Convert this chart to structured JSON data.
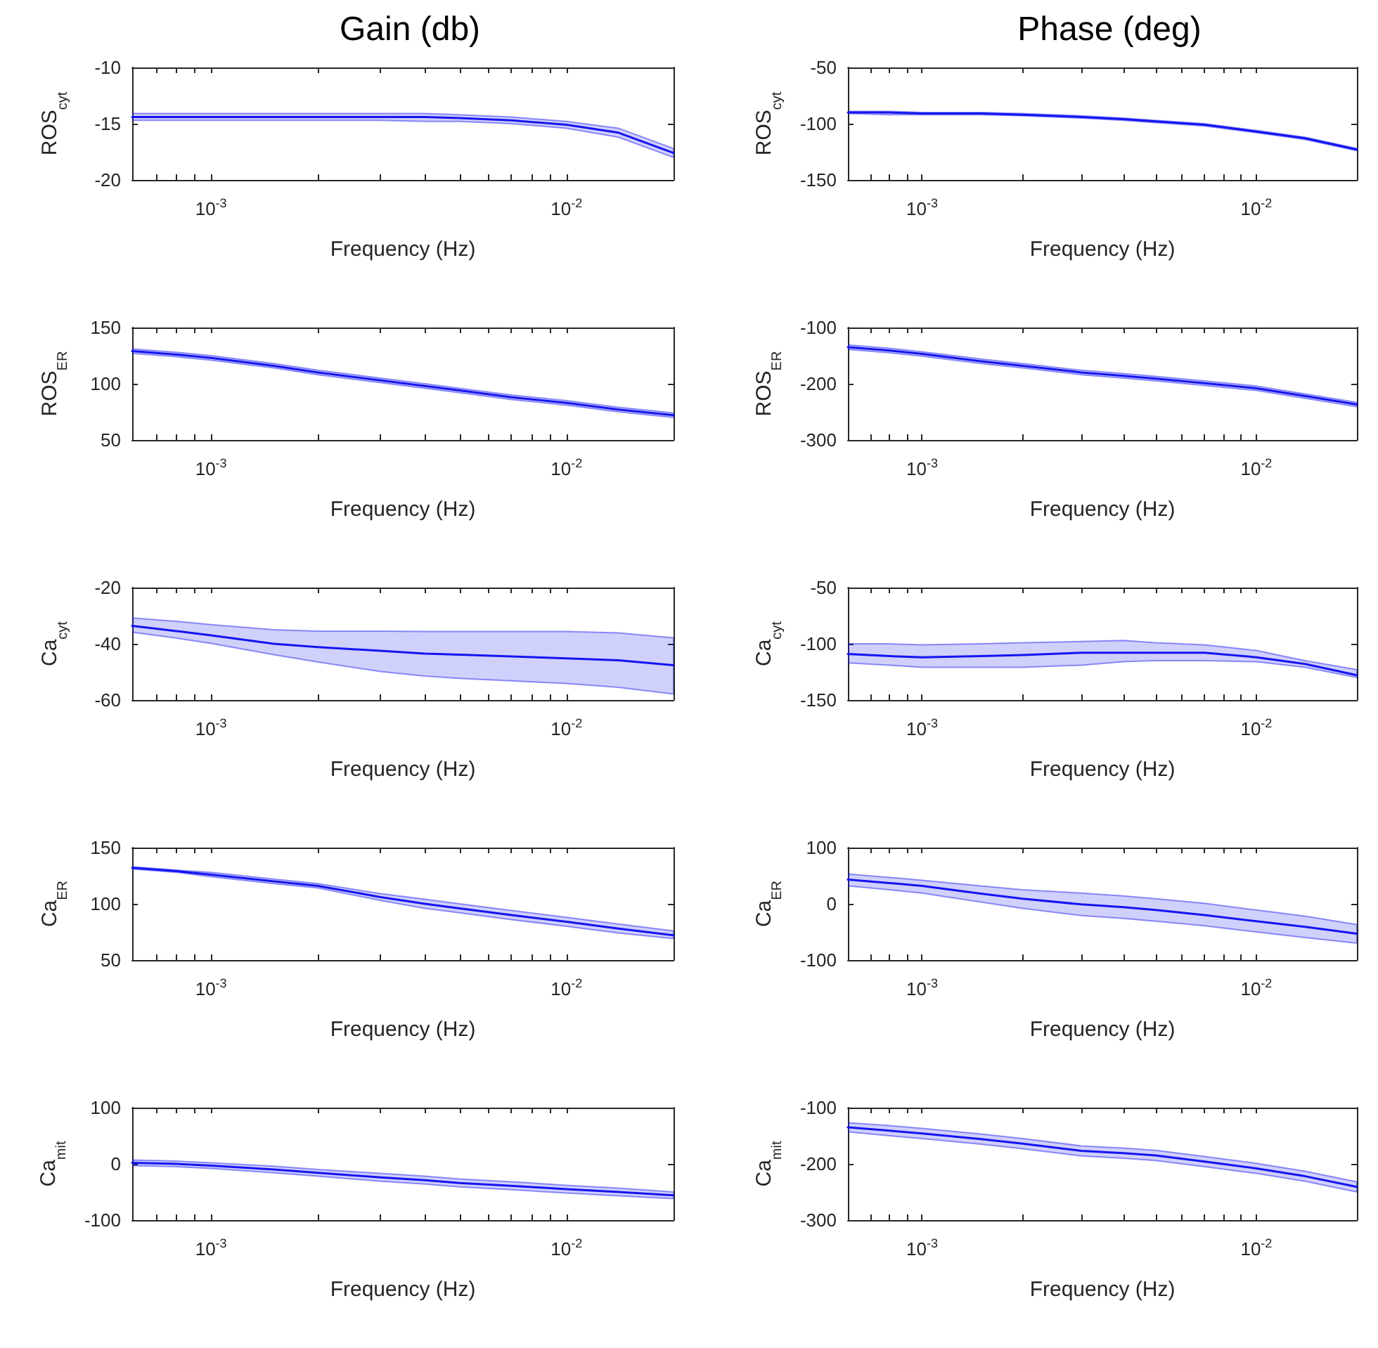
{
  "chart_data": [
    {
      "type": "line",
      "title": "Gain (db)",
      "xlabel": "Frequency (Hz)",
      "ylabel": "ROS$_{cyt}$",
      "log": "x",
      "grid": false,
      "marker": "none",
      "xlim": [
        0.0006,
        0.02
      ],
      "xticks": [
        {
          "value": 0.0006,
          "label": null
        },
        {
          "value": 0.0007,
          "label": null
        },
        {
          "value": 0.0008,
          "label": null
        },
        {
          "value": 0.0009,
          "label": null
        },
        {
          "value": 0.001,
          "label": "10$^{-3}$"
        },
        {
          "value": 0.002,
          "label": null
        },
        {
          "value": 0.003,
          "label": null
        },
        {
          "value": 0.004,
          "label": null
        },
        {
          "value": 0.005,
          "label": null
        },
        {
          "value": 0.006,
          "label": null
        },
        {
          "value": 0.007,
          "label": null
        },
        {
          "value": 0.008,
          "label": null
        },
        {
          "value": 0.009,
          "label": null
        },
        {
          "value": 0.01,
          "label": "10$^{-2}$"
        },
        {
          "value": 0.02,
          "label": null
        }
      ],
      "ylim": [
        -20,
        -10
      ],
      "yticks": [
        -20,
        -15,
        -10
      ],
      "x": [
        0.0006,
        0.0008,
        0.001,
        0.0015,
        0.002,
        0.003,
        0.004,
        0.005,
        0.007,
        0.01,
        0.014,
        0.02
      ],
      "series": [
        {
          "color": "#1414f0",
          "values": [
            -14.4,
            -14.4,
            -14.4,
            -14.4,
            -14.4,
            -14.4,
            -14.4,
            -14.5,
            -14.7,
            -15.1,
            -15.8,
            -17.6
          ],
          "upper": [
            -14.1,
            -14.1,
            -14.1,
            -14.1,
            -14.1,
            -14.1,
            -14.1,
            -14.2,
            -14.4,
            -14.8,
            -15.4,
            -17.2
          ],
          "lower": [
            -14.7,
            -14.7,
            -14.7,
            -14.7,
            -14.7,
            -14.7,
            -14.8,
            -14.8,
            -15.0,
            -15.4,
            -16.2,
            -18.0
          ]
        }
      ]
    },
    {
      "type": "line",
      "title": "Phase (deg)",
      "xlabel": "Frequency (Hz)",
      "ylabel": "ROS$_{cyt}$",
      "log": "x",
      "grid": false,
      "marker": "none",
      "xlim": [
        0.0006,
        0.02
      ],
      "xticks": [
        {
          "value": 0.0006,
          "label": null
        },
        {
          "value": 0.0007,
          "label": null
        },
        {
          "value": 0.0008,
          "label": null
        },
        {
          "value": 0.0009,
          "label": null
        },
        {
          "value": 0.001,
          "label": "10$^{-3}$"
        },
        {
          "value": 0.002,
          "label": null
        },
        {
          "value": 0.003,
          "label": null
        },
        {
          "value": 0.004,
          "label": null
        },
        {
          "value": 0.005,
          "label": null
        },
        {
          "value": 0.006,
          "label": null
        },
        {
          "value": 0.007,
          "label": null
        },
        {
          "value": 0.008,
          "label": null
        },
        {
          "value": 0.009,
          "label": null
        },
        {
          "value": 0.01,
          "label": "10$^{-2}$"
        },
        {
          "value": 0.02,
          "label": null
        }
      ],
      "ylim": [
        -150,
        -50
      ],
      "yticks": [
        -150,
        -100,
        -50
      ],
      "x": [
        0.0006,
        0.0008,
        0.001,
        0.0015,
        0.002,
        0.003,
        0.004,
        0.005,
        0.007,
        0.01,
        0.014,
        0.02
      ],
      "series": [
        {
          "color": "#1414f0",
          "values": [
            -90,
            -90,
            -91,
            -91,
            -92,
            -94,
            -96,
            -98,
            -101,
            -107,
            -113,
            -123
          ],
          "upper": [
            -89,
            -89,
            -90,
            -90,
            -91,
            -93,
            -95,
            -97,
            -100,
            -106,
            -112,
            -122
          ],
          "lower": [
            -91,
            -92,
            -92,
            -92,
            -93,
            -95,
            -97,
            -99,
            -102,
            -108,
            -114,
            -124
          ]
        }
      ]
    },
    {
      "type": "line",
      "xlabel": "Frequency (Hz)",
      "ylabel": "ROS$_{ER}$",
      "log": "x",
      "grid": false,
      "marker": "none",
      "xlim": [
        0.0006,
        0.02
      ],
      "xticks": [
        {
          "value": 0.0006,
          "label": null
        },
        {
          "value": 0.0007,
          "label": null
        },
        {
          "value": 0.0008,
          "label": null
        },
        {
          "value": 0.0009,
          "label": null
        },
        {
          "value": 0.001,
          "label": "10$^{-3}$"
        },
        {
          "value": 0.002,
          "label": null
        },
        {
          "value": 0.003,
          "label": null
        },
        {
          "value": 0.004,
          "label": null
        },
        {
          "value": 0.005,
          "label": null
        },
        {
          "value": 0.006,
          "label": null
        },
        {
          "value": 0.007,
          "label": null
        },
        {
          "value": 0.008,
          "label": null
        },
        {
          "value": 0.009,
          "label": null
        },
        {
          "value": 0.01,
          "label": "10$^{-2}$"
        },
        {
          "value": 0.02,
          "label": null
        }
      ],
      "ylim": [
        50,
        150
      ],
      "yticks": [
        50,
        100,
        150
      ],
      "x": [
        0.0006,
        0.0008,
        0.001,
        0.0015,
        0.002,
        0.003,
        0.004,
        0.005,
        0.007,
        0.01,
        0.014,
        0.02
      ],
      "series": [
        {
          "color": "#1414f0",
          "values": [
            129,
            126,
            123,
            116,
            110,
            103,
            98,
            94,
            88,
            83,
            77,
            72
          ],
          "upper": [
            131,
            128,
            125,
            118,
            112,
            105,
            100,
            96,
            90,
            85,
            79,
            74
          ],
          "lower": [
            127,
            124,
            121,
            114,
            108,
            101,
            96,
            92,
            86,
            81,
            75,
            70
          ]
        }
      ]
    },
    {
      "type": "line",
      "xlabel": "Frequency (Hz)",
      "ylabel": "ROS$_{ER}$",
      "log": "x",
      "grid": false,
      "marker": "none",
      "xlim": [
        0.0006,
        0.02
      ],
      "xticks": [
        {
          "value": 0.0006,
          "label": null
        },
        {
          "value": 0.0007,
          "label": null
        },
        {
          "value": 0.0008,
          "label": null
        },
        {
          "value": 0.0009,
          "label": null
        },
        {
          "value": 0.001,
          "label": "10$^{-3}$"
        },
        {
          "value": 0.002,
          "label": null
        },
        {
          "value": 0.003,
          "label": null
        },
        {
          "value": 0.004,
          "label": null
        },
        {
          "value": 0.005,
          "label": null
        },
        {
          "value": 0.006,
          "label": null
        },
        {
          "value": 0.007,
          "label": null
        },
        {
          "value": 0.008,
          "label": null
        },
        {
          "value": 0.009,
          "label": null
        },
        {
          "value": 0.01,
          "label": "10$^{-2}$"
        },
        {
          "value": 0.02,
          "label": null
        }
      ],
      "ylim": [
        -300,
        -100
      ],
      "yticks": [
        -300,
        -200,
        -100
      ],
      "x": [
        0.0006,
        0.0008,
        0.001,
        0.0015,
        0.002,
        0.003,
        0.004,
        0.005,
        0.007,
        0.01,
        0.014,
        0.02
      ],
      "series": [
        {
          "color": "#1414f0",
          "values": [
            -135,
            -141,
            -147,
            -160,
            -168,
            -180,
            -186,
            -191,
            -199,
            -208,
            -222,
            -237
          ],
          "upper": [
            -131,
            -137,
            -143,
            -156,
            -164,
            -176,
            -182,
            -187,
            -195,
            -204,
            -218,
            -233
          ],
          "lower": [
            -139,
            -145,
            -151,
            -164,
            -172,
            -184,
            -190,
            -195,
            -203,
            -212,
            -226,
            -241
          ]
        }
      ]
    },
    {
      "type": "line",
      "xlabel": "Frequency (Hz)",
      "ylabel": "Ca$_{cyt}$",
      "log": "x",
      "grid": false,
      "marker": "none",
      "xlim": [
        0.0006,
        0.02
      ],
      "xticks": [
        {
          "value": 0.0006,
          "label": null
        },
        {
          "value": 0.0007,
          "label": null
        },
        {
          "value": 0.0008,
          "label": null
        },
        {
          "value": 0.0009,
          "label": null
        },
        {
          "value": 0.001,
          "label": "10$^{-3}$"
        },
        {
          "value": 0.002,
          "label": null
        },
        {
          "value": 0.003,
          "label": null
        },
        {
          "value": 0.004,
          "label": null
        },
        {
          "value": 0.005,
          "label": null
        },
        {
          "value": 0.006,
          "label": null
        },
        {
          "value": 0.007,
          "label": null
        },
        {
          "value": 0.008,
          "label": null
        },
        {
          "value": 0.009,
          "label": null
        },
        {
          "value": 0.01,
          "label": "10$^{-2}$"
        },
        {
          "value": 0.02,
          "label": null
        }
      ],
      "ylim": [
        -60,
        -20
      ],
      "yticks": [
        -60,
        -40,
        -20
      ],
      "x": [
        0.0006,
        0.0008,
        0.001,
        0.0015,
        0.002,
        0.003,
        0.004,
        0.005,
        0.007,
        0.01,
        0.014,
        0.02
      ],
      "series": [
        {
          "color": "#1414f0",
          "values": [
            -33.6,
            -35.5,
            -37,
            -40,
            -41.2,
            -42.5,
            -43.5,
            -43.9,
            -44.5,
            -45.2,
            -45.9,
            -47.6
          ],
          "upper": [
            -30.8,
            -32,
            -33.2,
            -35,
            -35.5,
            -35.5,
            -35.6,
            -35.6,
            -35.6,
            -35.6,
            -36.1,
            -37.9
          ],
          "lower": [
            -35.9,
            -38,
            -39.9,
            -43.9,
            -46.5,
            -49.9,
            -51.5,
            -52.3,
            -53.2,
            -54.1,
            -55.5,
            -57.9
          ]
        }
      ]
    },
    {
      "type": "line",
      "xlabel": "Frequency (Hz)",
      "ylabel": "Ca$_{cyt}$",
      "log": "x",
      "grid": false,
      "marker": "none",
      "xlim": [
        0.0006,
        0.02
      ],
      "xticks": [
        {
          "value": 0.0006,
          "label": null
        },
        {
          "value": 0.0007,
          "label": null
        },
        {
          "value": 0.0008,
          "label": null
        },
        {
          "value": 0.0009,
          "label": null
        },
        {
          "value": 0.001,
          "label": "10$^{-3}$"
        },
        {
          "value": 0.002,
          "label": null
        },
        {
          "value": 0.003,
          "label": null
        },
        {
          "value": 0.004,
          "label": null
        },
        {
          "value": 0.005,
          "label": null
        },
        {
          "value": 0.006,
          "label": null
        },
        {
          "value": 0.007,
          "label": null
        },
        {
          "value": 0.008,
          "label": null
        },
        {
          "value": 0.009,
          "label": null
        },
        {
          "value": 0.01,
          "label": "10$^{-2}$"
        },
        {
          "value": 0.02,
          "label": null
        }
      ],
      "ylim": [
        -150,
        -50
      ],
      "yticks": [
        -150,
        -100,
        -50
      ],
      "x": [
        0.0006,
        0.0008,
        0.001,
        0.0015,
        0.002,
        0.003,
        0.004,
        0.005,
        0.007,
        0.01,
        0.014,
        0.02
      ],
      "series": [
        {
          "color": "#1414f0",
          "values": [
            -109,
            -111,
            -112,
            -111,
            -110,
            -108,
            -108,
            -108,
            -108,
            -112,
            -118,
            -128
          ],
          "upper": [
            -100,
            -100,
            -101,
            -100,
            -99,
            -98,
            -97,
            -99,
            -101,
            -106,
            -115,
            -123
          ],
          "lower": [
            -117,
            -119,
            -121,
            -121,
            -121,
            -119,
            -116,
            -115,
            -115,
            -116,
            -121,
            -130
          ]
        }
      ]
    },
    {
      "type": "line",
      "xlabel": "Frequency (Hz)",
      "ylabel": "Ca$_{ER}$",
      "log": "x",
      "grid": false,
      "marker": "none",
      "xlim": [
        0.0006,
        0.02
      ],
      "xticks": [
        {
          "value": 0.0006,
          "label": null
        },
        {
          "value": 0.0007,
          "label": null
        },
        {
          "value": 0.0008,
          "label": null
        },
        {
          "value": 0.0009,
          "label": null
        },
        {
          "value": 0.001,
          "label": "10$^{-3}$"
        },
        {
          "value": 0.002,
          "label": null
        },
        {
          "value": 0.003,
          "label": null
        },
        {
          "value": 0.004,
          "label": null
        },
        {
          "value": 0.005,
          "label": null
        },
        {
          "value": 0.006,
          "label": null
        },
        {
          "value": 0.007,
          "label": null
        },
        {
          "value": 0.008,
          "label": null
        },
        {
          "value": 0.009,
          "label": null
        },
        {
          "value": 0.01,
          "label": "10$^{-2}$"
        },
        {
          "value": 0.02,
          "label": null
        }
      ],
      "ylim": [
        50,
        150
      ],
      "yticks": [
        50,
        100,
        150
      ],
      "x": [
        0.0006,
        0.0008,
        0.001,
        0.0015,
        0.002,
        0.003,
        0.004,
        0.005,
        0.007,
        0.01,
        0.014,
        0.02
      ],
      "series": [
        {
          "color": "#1414f0",
          "values": [
            132,
            129,
            126,
            120,
            116,
            106,
            100,
            96,
            90,
            84,
            78,
            72
          ],
          "upper": [
            133,
            130,
            128,
            122,
            118,
            109,
            104,
            100,
            94,
            88,
            82,
            76
          ],
          "lower": [
            131,
            128,
            124,
            118,
            114,
            103,
            96,
            92,
            86,
            80,
            74,
            69
          ]
        }
      ]
    },
    {
      "type": "line",
      "xlabel": "Frequency (Hz)",
      "ylabel": "Ca$_{ER}$",
      "log": "x",
      "grid": false,
      "marker": "none",
      "xlim": [
        0.0006,
        0.02
      ],
      "xticks": [
        {
          "value": 0.0006,
          "label": null
        },
        {
          "value": 0.0007,
          "label": null
        },
        {
          "value": 0.0008,
          "label": null
        },
        {
          "value": 0.0009,
          "label": null
        },
        {
          "value": 0.001,
          "label": "10$^{-3}$"
        },
        {
          "value": 0.002,
          "label": null
        },
        {
          "value": 0.003,
          "label": null
        },
        {
          "value": 0.004,
          "label": null
        },
        {
          "value": 0.005,
          "label": null
        },
        {
          "value": 0.006,
          "label": null
        },
        {
          "value": 0.007,
          "label": null
        },
        {
          "value": 0.008,
          "label": null
        },
        {
          "value": 0.009,
          "label": null
        },
        {
          "value": 0.01,
          "label": "10$^{-2}$"
        },
        {
          "value": 0.02,
          "label": null
        }
      ],
      "ylim": [
        -100,
        100
      ],
      "yticks": [
        -100,
        0,
        100
      ],
      "x": [
        0.0006,
        0.0008,
        0.001,
        0.0015,
        0.002,
        0.003,
        0.004,
        0.005,
        0.007,
        0.01,
        0.014,
        0.02
      ],
      "series": [
        {
          "color": "#1414f0",
          "values": [
            43,
            37,
            32,
            18,
            9,
            -1,
            -6,
            -11,
            -20,
            -31,
            -41,
            -53
          ],
          "upper": [
            53,
            47,
            42,
            32,
            25,
            19,
            14,
            9,
            1,
            -11,
            -22,
            -37
          ],
          "lower": [
            32,
            25,
            19,
            3,
            -8,
            -21,
            -26,
            -31,
            -39,
            -50,
            -60,
            -70
          ]
        }
      ]
    },
    {
      "type": "line",
      "xlabel": "Frequency (Hz)",
      "ylabel": "Ca$_{mit}$",
      "log": "x",
      "grid": false,
      "marker": "none",
      "xlim": [
        0.0006,
        0.02
      ],
      "xticks": [
        {
          "value": 0.0006,
          "label": null
        },
        {
          "value": 0.0007,
          "label": null
        },
        {
          "value": 0.0008,
          "label": null
        },
        {
          "value": 0.0009,
          "label": null
        },
        {
          "value": 0.001,
          "label": "10$^{-3}$"
        },
        {
          "value": 0.002,
          "label": null
        },
        {
          "value": 0.003,
          "label": null
        },
        {
          "value": 0.004,
          "label": null
        },
        {
          "value": 0.005,
          "label": null
        },
        {
          "value": 0.006,
          "label": null
        },
        {
          "value": 0.007,
          "label": null
        },
        {
          "value": 0.008,
          "label": null
        },
        {
          "value": 0.009,
          "label": null
        },
        {
          "value": 0.01,
          "label": "10$^{-2}$"
        },
        {
          "value": 0.02,
          "label": null
        }
      ],
      "ylim": [
        -100,
        100
      ],
      "yticks": [
        -100,
        0,
        100
      ],
      "x": [
        0.0006,
        0.0008,
        0.001,
        0.0015,
        0.002,
        0.003,
        0.004,
        0.005,
        0.007,
        0.01,
        0.014,
        0.02
      ],
      "series": [
        {
          "color": "#1414f0",
          "values": [
            2,
            0,
            -3,
            -10,
            -16,
            -24,
            -29,
            -34,
            -39,
            -45,
            -50,
            -56
          ],
          "upper": [
            7,
            5,
            2,
            -4,
            -10,
            -17,
            -22,
            -27,
            -32,
            -38,
            -43,
            -50
          ],
          "lower": [
            -3,
            -5,
            -8,
            -16,
            -22,
            -31,
            -36,
            -41,
            -46,
            -52,
            -57,
            -62
          ]
        }
      ]
    },
    {
      "type": "line",
      "xlabel": "Frequency (Hz)",
      "ylabel": "Ca$_{mit}$",
      "log": "x",
      "grid": false,
      "marker": "none",
      "xlim": [
        0.0006,
        0.02
      ],
      "xticks": [
        {
          "value": 0.0006,
          "label": null
        },
        {
          "value": 0.0007,
          "label": null
        },
        {
          "value": 0.0008,
          "label": null
        },
        {
          "value": 0.0009,
          "label": null
        },
        {
          "value": 0.001,
          "label": "10$^{-3}$"
        },
        {
          "value": 0.002,
          "label": null
        },
        {
          "value": 0.003,
          "label": null
        },
        {
          "value": 0.004,
          "label": null
        },
        {
          "value": 0.005,
          "label": null
        },
        {
          "value": 0.006,
          "label": null
        },
        {
          "value": 0.007,
          "label": null
        },
        {
          "value": 0.008,
          "label": null
        },
        {
          "value": 0.009,
          "label": null
        },
        {
          "value": 0.01,
          "label": "10$^{-2}$"
        },
        {
          "value": 0.02,
          "label": null
        }
      ],
      "ylim": [
        -300,
        -100
      ],
      "yticks": [
        -300,
        -200,
        -100
      ],
      "x": [
        0.0006,
        0.0008,
        0.001,
        0.0015,
        0.002,
        0.003,
        0.004,
        0.005,
        0.007,
        0.01,
        0.014,
        0.02
      ],
      "series": [
        {
          "color": "#1414f0",
          "values": [
            -135,
            -141,
            -146,
            -156,
            -164,
            -177,
            -181,
            -185,
            -196,
            -208,
            -222,
            -241
          ],
          "upper": [
            -127,
            -132,
            -137,
            -147,
            -155,
            -168,
            -172,
            -176,
            -187,
            -199,
            -213,
            -232
          ],
          "lower": [
            -143,
            -150,
            -155,
            -165,
            -173,
            -186,
            -190,
            -194,
            -205,
            -217,
            -231,
            -250
          ]
        }
      ]
    }
  ]
}
